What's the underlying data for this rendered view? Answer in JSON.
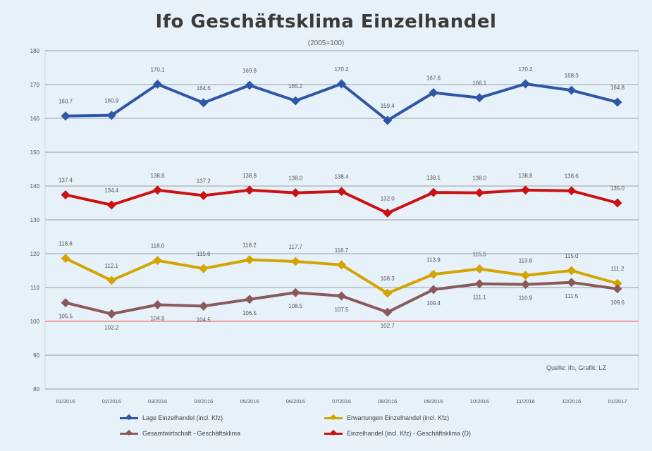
{
  "chart_data": {
    "type": "line",
    "title": "Ifo Geschäftsklima Einzelhandel",
    "subtitle": "(2005=100)",
    "ylim": [
      80,
      180
    ],
    "yticks": [
      "180",
      "170",
      "160",
      "150",
      "140",
      "130",
      "120",
      "110",
      "100",
      "90",
      "80"
    ],
    "categories": [
      "01/2016",
      "02/2016",
      "03/2016",
      "04/2016",
      "05/2016",
      "06/2016",
      "07/2016",
      "08/2016",
      "09/2016",
      "10/2016",
      "11/2016",
      "12/2016",
      "01/2017"
    ],
    "grid": true,
    "reference_line": 100,
    "source_note": "Quelle: ifo, Grafik: LZ",
    "legend_position": "bottom",
    "series": [
      {
        "name": "Lage Einzelhandel (incl. Kfz)",
        "color": "#2f56a6",
        "values": [
          160.7,
          160.9,
          170.1,
          164.6,
          169.8,
          165.2,
          170.2,
          159.4,
          167.6,
          166.1,
          170.2,
          168.3,
          164.8
        ],
        "labels": [
          "160.7",
          "160.9",
          "170.1",
          "164.6",
          "169.8",
          "165.2",
          "170.2",
          "159.4",
          "167.6",
          "166.1",
          "170.2",
          "168.3",
          "164.8"
        ]
      },
      {
        "name": "Einzelhandel (incl. Kfz) - Geschäftsklima (D)",
        "color": "#cc1111",
        "values": [
          137.4,
          134.4,
          138.8,
          137.2,
          138.8,
          138.0,
          138.4,
          132.0,
          138.1,
          138.0,
          138.8,
          138.6,
          135.0
        ],
        "labels": [
          "137.4",
          "134.4",
          "138.8",
          "137.2",
          "138.8",
          "138.0",
          "138.4",
          "132.0",
          "138.1",
          "138.0",
          "138.8",
          "138.6",
          "135.0"
        ]
      },
      {
        "name": "Erwartungen Einzelhandel (incl. Kfz)",
        "color": "#d4a400",
        "values": [
          118.6,
          112.1,
          118.0,
          115.6,
          118.2,
          117.7,
          116.7,
          108.3,
          113.9,
          115.5,
          113.6,
          115.0,
          111.2
        ],
        "labels": [
          "118.6",
          "112.1",
          "118.0",
          "115.6",
          "118.2",
          "117.7",
          "116.7",
          "108.3",
          "113.9",
          "115.5",
          "113.6",
          "115.0",
          "111.2"
        ]
      },
      {
        "name": "Gesamtwirtschaft - Geschäftsklima",
        "color": "#8a5a5a",
        "values": [
          105.5,
          102.2,
          104.9,
          104.5,
          106.5,
          108.5,
          107.5,
          102.7,
          109.4,
          111.1,
          110.9,
          111.5,
          109.6
        ],
        "labels": [
          "105.5",
          "102.2",
          "104.9",
          "104.5",
          "106.5",
          "108.5",
          "107.5",
          "102.7",
          "109.4",
          "111.1",
          "110.9",
          "111.5",
          "109.6"
        ]
      }
    ]
  },
  "legend": {
    "items": [
      {
        "label": "Lage Einzelhandel (incl. Kfz)",
        "color": "#2f56a6"
      },
      {
        "label": "Erwartungen Einzelhandel (incl. Kfz)",
        "color": "#d4a400"
      },
      {
        "label": "Gesamtwirtschaft - Geschäftsklima",
        "color": "#8a5a5a"
      },
      {
        "label": "Einzelhandel (incl. Kfz) - Geschäftsklima (D)",
        "color": "#cc1111"
      }
    ]
  }
}
